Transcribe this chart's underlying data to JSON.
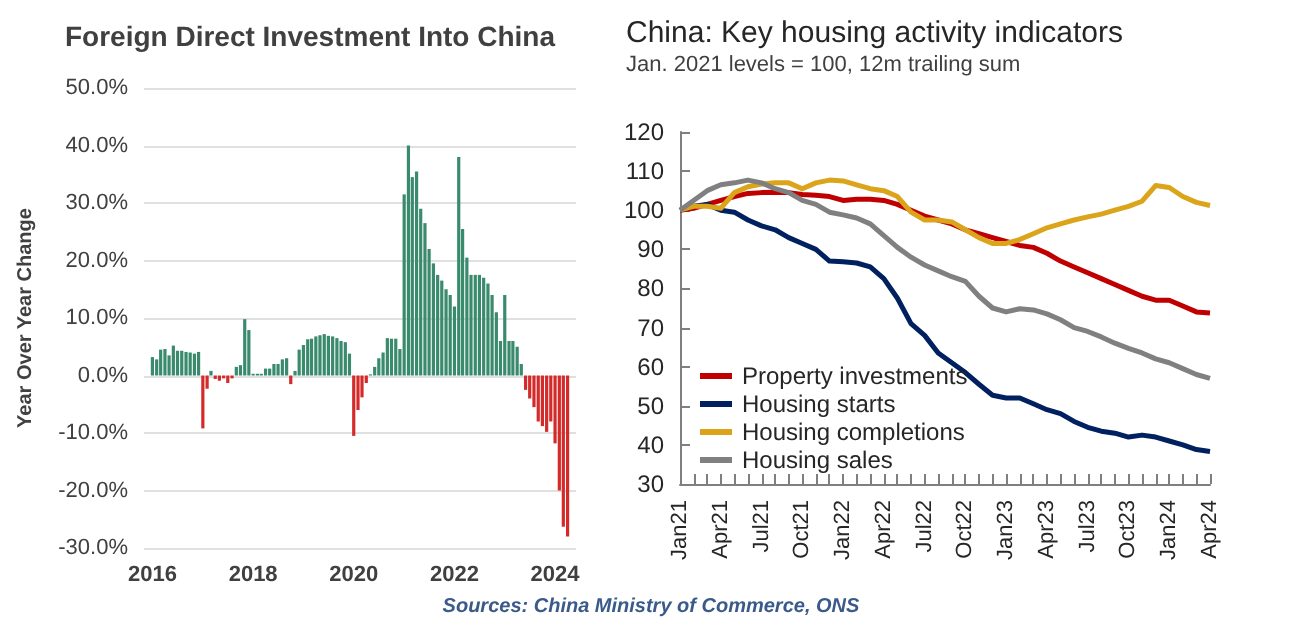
{
  "chart_data": [
    {
      "type": "bar",
      "title": "Foreign Direct Investment Into China",
      "ylabel": "Year Over Year Change",
      "x": [
        "2016-01",
        "2016-02",
        "2016-03",
        "2016-04",
        "2016-05",
        "2016-06",
        "2016-07",
        "2016-08",
        "2016-09",
        "2016-10",
        "2016-11",
        "2016-12",
        "2017-01",
        "2017-02",
        "2017-03",
        "2017-04",
        "2017-05",
        "2017-06",
        "2017-07",
        "2017-08",
        "2017-09",
        "2017-10",
        "2017-11",
        "2017-12",
        "2018-01",
        "2018-02",
        "2018-03",
        "2018-04",
        "2018-05",
        "2018-06",
        "2018-07",
        "2018-08",
        "2018-09",
        "2018-10",
        "2018-11",
        "2018-12",
        "2019-01",
        "2019-02",
        "2019-03",
        "2019-04",
        "2019-05",
        "2019-06",
        "2019-07",
        "2019-08",
        "2019-09",
        "2019-10",
        "2019-11",
        "2019-12",
        "2020-01",
        "2020-02",
        "2020-03",
        "2020-04",
        "2020-05",
        "2020-06",
        "2020-07",
        "2020-08",
        "2020-09",
        "2020-10",
        "2020-11",
        "2020-12",
        "2021-01",
        "2021-02",
        "2021-03",
        "2021-04",
        "2021-05",
        "2021-06",
        "2021-07",
        "2021-08",
        "2021-09",
        "2021-10",
        "2021-11",
        "2021-12",
        "2022-01",
        "2022-02",
        "2022-03",
        "2022-04",
        "2022-05",
        "2022-06",
        "2022-07",
        "2022-08",
        "2022-09",
        "2022-10",
        "2022-11",
        "2022-12",
        "2023-01",
        "2023-02",
        "2023-03",
        "2023-04",
        "2023-05",
        "2023-06",
        "2023-07",
        "2023-08",
        "2023-09",
        "2023-10",
        "2023-11",
        "2023-12",
        "2024-01",
        "2024-02",
        "2024-03",
        "2024-04"
      ],
      "series": [
        {
          "color": "#3a8a6e",
          "values": [
            3.2,
            2.8,
            4.5,
            4.6,
            3.5,
            5.2,
            4.3,
            4.3,
            4.1,
            4.0,
            3.8,
            4.1,
            null,
            null,
            0.8,
            null,
            null,
            null,
            null,
            null,
            1.5,
            1.8,
            9.8,
            7.9,
            0.3,
            0.3,
            0.3,
            1.2,
            1.2,
            2.0,
            2.0,
            2.8,
            3.0,
            null,
            0.8,
            4.5,
            5.3,
            6.3,
            6.4,
            6.8,
            7.0,
            7.2,
            6.9,
            6.8,
            6.5,
            6.0,
            5.8,
            3.8,
            null,
            null,
            null,
            null,
            0.2,
            1.5,
            3.0,
            4.0,
            6.5,
            6.4,
            6.4,
            4.6,
            31.5,
            40,
            34.5,
            35.5,
            29,
            26.5,
            22,
            19.5,
            17.5,
            16.5,
            15,
            14,
            12,
            38,
            25.5,
            20.5,
            17.5,
            17.5,
            17.5,
            17,
            16,
            14,
            11,
            6,
            14,
            6,
            6,
            5,
            2,
            null,
            null,
            null,
            null,
            null,
            null,
            null,
            null,
            null,
            null,
            null
          ]
        },
        {
          "color": "#d42a2a",
          "values": [
            null,
            null,
            null,
            null,
            null,
            null,
            null,
            null,
            null,
            null,
            null,
            null,
            -9.2,
            -2.3,
            null,
            -0.6,
            -0.9,
            -0.5,
            -1.3,
            -0.5,
            null,
            null,
            null,
            null,
            null,
            null,
            null,
            null,
            null,
            null,
            null,
            null,
            null,
            -1.5,
            null,
            null,
            null,
            null,
            null,
            null,
            null,
            null,
            null,
            null,
            null,
            null,
            null,
            null,
            -10.5,
            -6.0,
            -3.8,
            -1.3,
            null,
            null,
            null,
            null,
            null,
            null,
            null,
            null,
            null,
            null,
            null,
            null,
            null,
            null,
            null,
            null,
            null,
            null,
            null,
            null,
            null,
            null,
            null,
            null,
            null,
            null,
            null,
            null,
            null,
            null,
            null,
            null,
            null,
            null,
            null,
            null,
            null,
            -2.5,
            -4,
            -5.5,
            -8,
            -8.8,
            -9.8,
            -8,
            -11.8,
            -20,
            -26.3,
            -28
          ]
        }
      ],
      "xlim": [
        "2015-11",
        "2024-06"
      ],
      "xticks": [
        "2016",
        "2018",
        "2020",
        "2022",
        "2024"
      ],
      "ylim": [
        -30,
        50
      ],
      "yticks": [
        {
          "value": -30,
          "label": "-30.0%"
        },
        {
          "value": -20,
          "label": "-20.0%"
        },
        {
          "value": -10,
          "label": "-10.0%"
        },
        {
          "value": 0,
          "label": "0.0%"
        },
        {
          "value": 10,
          "label": "10.0%"
        },
        {
          "value": 20,
          "label": "20.0%"
        },
        {
          "value": 30,
          "label": "30.0%"
        },
        {
          "value": 40,
          "label": "40.0%"
        },
        {
          "value": 50,
          "label": "50.0%"
        }
      ],
      "grid": "y",
      "annotations": [
        "Sources: China Ministry of Commerce, ONS"
      ]
    },
    {
      "type": "line",
      "title": "China: Key housing activity indicators",
      "subtitle": "Jan. 2021 levels = 100, 12m trailing sum",
      "categories": [
        "Jan21",
        null,
        null,
        "Apr21",
        null,
        null,
        "Jul21",
        null,
        null,
        "Oct21",
        null,
        null,
        "Jan22",
        null,
        null,
        "Apr22",
        null,
        null,
        "Jul22",
        null,
        null,
        "Oct22",
        null,
        null,
        "Jan23",
        null,
        null,
        "Apr23",
        null,
        null,
        "Jul23",
        null,
        null,
        "Oct23",
        null,
        null,
        "Jan24",
        null,
        null,
        "Apr24"
      ],
      "series": [
        {
          "name": "Property investments",
          "color": "#c00000",
          "values": [
            100,
            100.5,
            101.5,
            102.5,
            103.5,
            104.3,
            104.5,
            104.6,
            104.5,
            104,
            103.8,
            103.5,
            102.5,
            102.8,
            102.8,
            102.5,
            101.5,
            100,
            98.5,
            97.5,
            96.5,
            95,
            94,
            93,
            92,
            91,
            90.5,
            89,
            87,
            85.5,
            84,
            82.5,
            81,
            79.5,
            78,
            77,
            77,
            75.5,
            74,
            73.7
          ]
        },
        {
          "name": "Housing starts",
          "color": "#002060",
          "values": [
            100,
            101,
            101.5,
            100,
            99.5,
            97.5,
            96,
            95,
            93,
            91.5,
            90,
            87,
            86.8,
            86.5,
            85.5,
            82.5,
            77.5,
            71,
            68,
            63.5,
            61,
            58.5,
            55.5,
            52.7,
            52,
            52,
            50.5,
            49,
            48,
            46,
            44.5,
            43.5,
            43,
            42,
            42.5,
            42,
            41,
            40,
            38.8,
            38.3
          ]
        },
        {
          "name": "Housing completions",
          "color": "#dba41a",
          "values": [
            100,
            101,
            101,
            100.5,
            104.5,
            106,
            106.7,
            107,
            107,
            105.5,
            107,
            107.7,
            107.5,
            106.5,
            105.5,
            105,
            103.5,
            99.5,
            97.5,
            97.5,
            97,
            95,
            93,
            91.5,
            91.5,
            92.5,
            94,
            95.5,
            96.5,
            97.5,
            98.3,
            99,
            100,
            101,
            102.3,
            106.3,
            105.8,
            103.5,
            102,
            101.2
          ]
        },
        {
          "name": "Housing sales",
          "color": "#808080",
          "values": [
            100,
            102.5,
            105,
            106.5,
            107,
            107.7,
            107,
            105.5,
            104.5,
            102.5,
            101.5,
            99.5,
            98.8,
            98,
            96.5,
            93.5,
            90.5,
            88,
            86,
            84.5,
            83,
            81.8,
            78,
            75,
            74,
            74.8,
            74.5,
            73.5,
            72,
            70,
            69,
            67.6,
            66,
            64.7,
            63.5,
            62,
            61,
            59.5,
            58,
            57
          ]
        }
      ],
      "ylim": [
        30,
        120
      ],
      "yticks": [
        30,
        40,
        50,
        60,
        70,
        80,
        90,
        100,
        110,
        120
      ],
      "legend": "bottom left",
      "marker": "none"
    }
  ]
}
